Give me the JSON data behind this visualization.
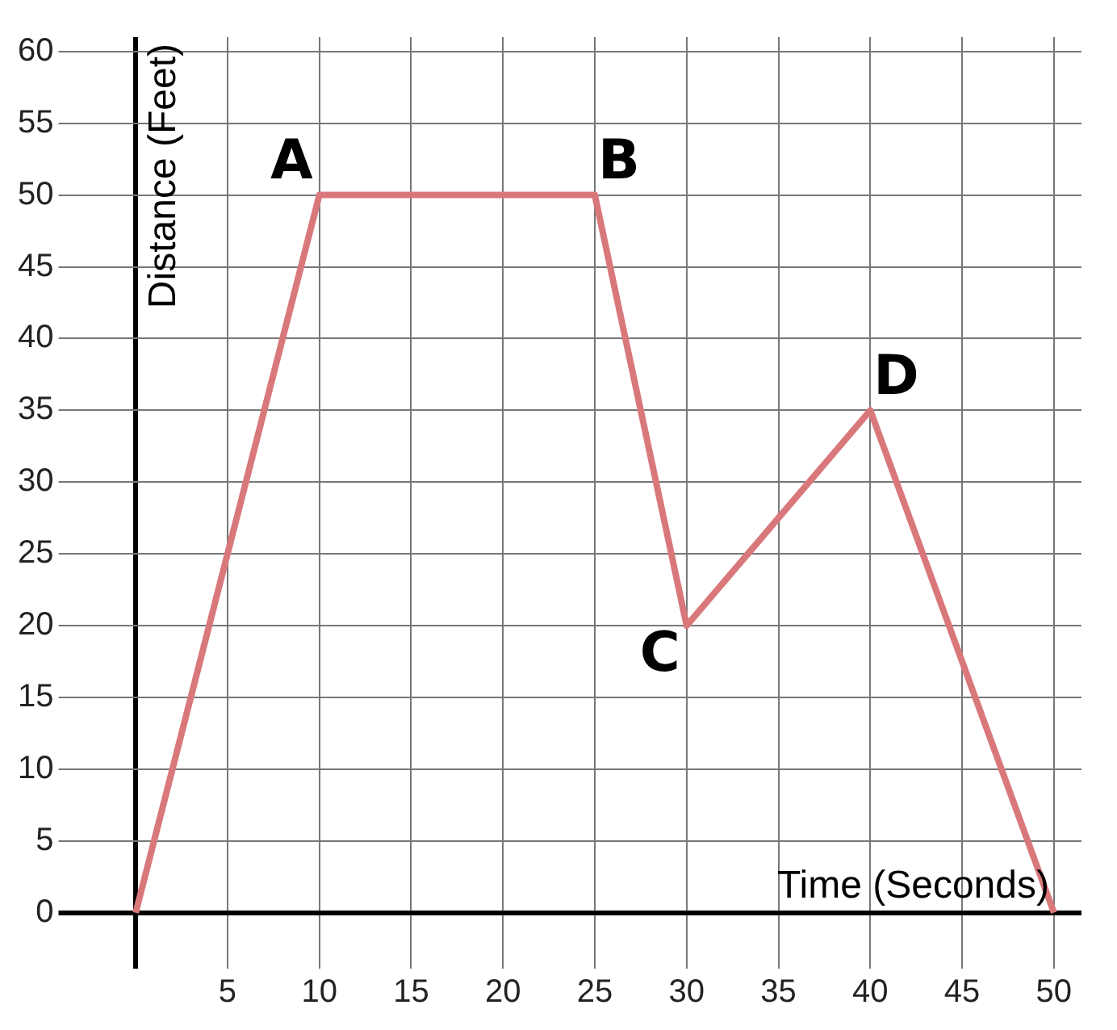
{
  "chart_data": {
    "type": "line",
    "xlabel": "Time (Seconds)",
    "ylabel": "Distance (Feet)",
    "x": [
      0,
      10,
      25,
      30,
      40,
      50
    ],
    "series": [
      {
        "color": "#d9787b",
        "values": [
          0,
          50,
          50,
          20,
          35,
          0
        ]
      }
    ],
    "xlim": [
      -3.5,
      51.5
    ],
    "ylim": [
      -3,
      61
    ],
    "xticks": [
      {
        "value": 0,
        "label": null
      },
      5,
      10,
      15,
      20,
      25,
      30,
      35,
      40,
      45,
      50
    ],
    "yticks": [
      0,
      5,
      10,
      15,
      20,
      25,
      30,
      35,
      40,
      45,
      50,
      55,
      60
    ],
    "annotations": [
      {
        "text": "A",
        "x": 10,
        "y": 50
      },
      {
        "text": "B",
        "x": 25,
        "y": 50
      },
      {
        "text": "C",
        "x": 30,
        "y": 20
      },
      {
        "text": "D",
        "x": 40,
        "y": 35
      }
    ],
    "grid": true,
    "legend": false,
    "marker": "none",
    "line_style": "solid"
  }
}
